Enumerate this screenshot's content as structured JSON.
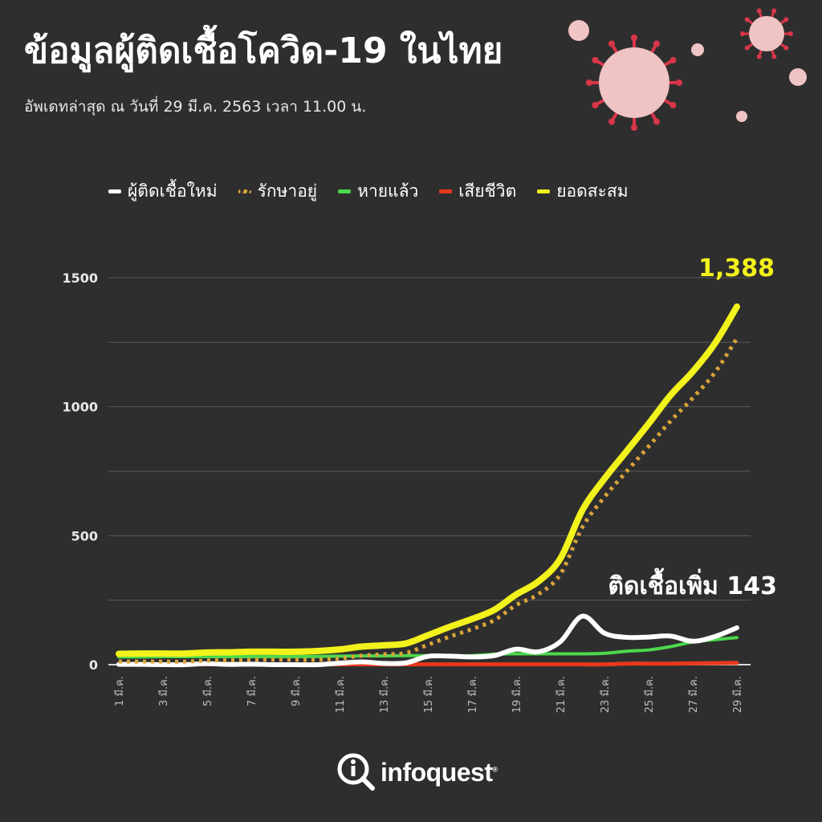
{
  "title": "ข้อมูลผู้ติดเชื้อโควิด-19 ในไทย",
  "subtitle": "อัพเดทล่าสุด ณ วันที่ 29 มี.ค. 2563 เวลา 11.00 น.",
  "logo": {
    "text": "infoquest",
    "reg": "®"
  },
  "colors": {
    "background": "#2f2e2e",
    "new": "#ffffff",
    "treating": "#d9a43a",
    "recovered": "#4cd84c",
    "deaths": "#e8391e",
    "cumulative": "#f2f21c",
    "virus": "#f0c4c4",
    "virus_spike": "#d9364a"
  },
  "chart_data": {
    "type": "line",
    "title": "",
    "xlabel": "",
    "ylabel": "",
    "ylim": [
      0,
      1500
    ],
    "yticks": [
      "0",
      "500",
      "1000",
      "1500"
    ],
    "grid": true,
    "legend": "top",
    "categories": [
      "1 มี.ค.",
      "2 มี.ค.",
      "3 มี.ค.",
      "4 มี.ค.",
      "5 มี.ค.",
      "6 มี.ค.",
      "7 มี.ค.",
      "8 มี.ค.",
      "9 มี.ค.",
      "10 มี.ค.",
      "11 มี.ค.",
      "12 มี.ค.",
      "13 มี.ค.",
      "14 มี.ค.",
      "15 มี.ค.",
      "16 มี.ค.",
      "17 มี.ค.",
      "18 มี.ค.",
      "19 มี.ค.",
      "20 มี.ค.",
      "21 มี.ค.",
      "22 มี.ค.",
      "23 มี.ค.",
      "24 มี.ค.",
      "25 มี.ค.",
      "26 มี.ค.",
      "27 มี.ค.",
      "28 มี.ค.",
      "29 มี.ค."
    ],
    "tick_labels": [
      "1 มี.ค.",
      "3 มี.ค.",
      "5 มี.ค.",
      "7 มี.ค.",
      "9 มี.ค.",
      "11 มี.ค.",
      "13 มี.ค.",
      "15 มี.ค.",
      "17 มี.ค.",
      "19 มี.ค.",
      "21 มี.ค.",
      "23 มี.ค.",
      "25 มี.ค.",
      "27 มี.ค.",
      "29 มี.ค."
    ],
    "series": [
      {
        "name": "ผู้ติดเชื้อใหม่",
        "key": "new",
        "values": [
          1,
          1,
          0,
          0,
          4,
          1,
          2,
          0,
          0,
          0,
          6,
          11,
          5,
          7,
          32,
          33,
          30,
          35,
          60,
          50,
          89,
          188,
          122,
          106,
          107,
          111,
          91,
          109,
          143
        ]
      },
      {
        "name": "รักษาอยู่",
        "key": "treating",
        "values": [
          12,
          12,
          12,
          12,
          16,
          17,
          19,
          19,
          19,
          19,
          24,
          35,
          40,
          45,
          77,
          109,
          138,
          172,
          231,
          273,
          350,
          533,
          650,
          749,
          846,
          945,
          1034,
          1132,
          1265
        ]
      },
      {
        "name": "หายแล้ว",
        "key": "recovered",
        "values": [
          30,
          30,
          31,
          31,
          31,
          31,
          31,
          31,
          31,
          32,
          33,
          34,
          34,
          35,
          35,
          35,
          35,
          41,
          42,
          42,
          42,
          42,
          44,
          52,
          57,
          70,
          88,
          97,
          105
        ]
      },
      {
        "name": "เสียชีวิต",
        "key": "deaths",
        "values": [
          1,
          1,
          1,
          1,
          1,
          1,
          1,
          1,
          1,
          1,
          1,
          1,
          1,
          1,
          1,
          1,
          1,
          1,
          1,
          1,
          1,
          1,
          1,
          4,
          4,
          4,
          5,
          6,
          7
        ]
      },
      {
        "name": "ยอดสะสม",
        "key": "cumulative",
        "values": [
          42,
          43,
          43,
          43,
          47,
          48,
          50,
          50,
          50,
          53,
          59,
          70,
          75,
          82,
          114,
          147,
          177,
          212,
          272,
          322,
          411,
          599,
          721,
          827,
          934,
          1045,
          1136,
          1245,
          1388
        ]
      }
    ],
    "annotations": {
      "cumulative_last": "1,388",
      "new_last": "ติดเชื้อเพิ่ม 143"
    }
  }
}
